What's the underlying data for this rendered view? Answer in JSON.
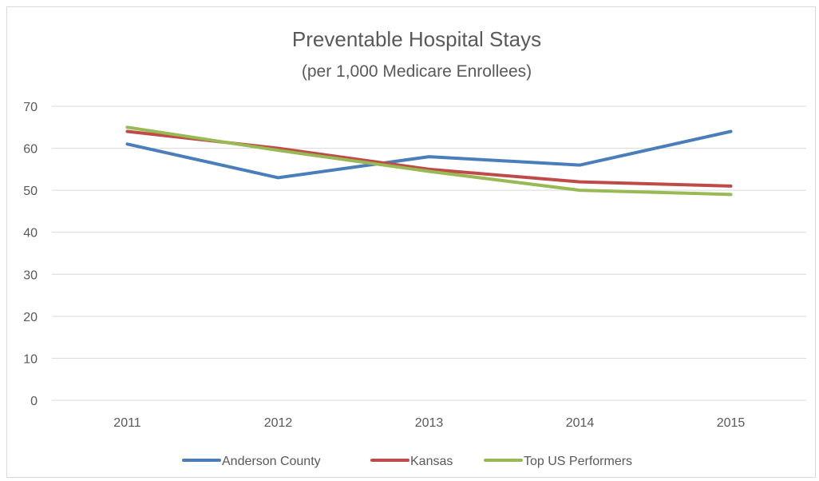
{
  "chart_data": {
    "type": "line",
    "title": "Preventable Hospital Stays",
    "subtitle": "(per 1,000 Medicare Enrollees)",
    "categories": [
      "2011",
      "2012",
      "2013",
      "2014",
      "2015"
    ],
    "series": [
      {
        "name": "Anderson County",
        "values": [
          61,
          53,
          58,
          56,
          64
        ],
        "color": "#4a7ebb"
      },
      {
        "name": "Kansas",
        "values": [
          64,
          60,
          55,
          52,
          51
        ],
        "color": "#be4b48"
      },
      {
        "name": "Top US Performers",
        "values": [
          65,
          59.5,
          54.5,
          50,
          49
        ],
        "color": "#98b954"
      }
    ],
    "ylim": [
      0,
      70
    ],
    "yticks": [
      "0",
      "10",
      "20",
      "30",
      "40",
      "50",
      "60",
      "70"
    ],
    "grid": true,
    "legend": "bottom"
  }
}
